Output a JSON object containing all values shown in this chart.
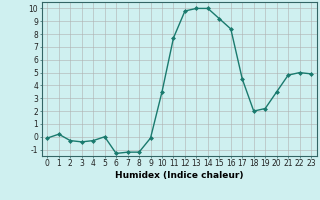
{
  "xlabel": "Humidex (Indice chaleur)",
  "x": [
    0,
    1,
    2,
    3,
    4,
    5,
    6,
    7,
    8,
    9,
    10,
    11,
    12,
    13,
    14,
    15,
    16,
    17,
    18,
    19,
    20,
    21,
    22,
    23
  ],
  "y": [
    -0.1,
    0.2,
    -0.3,
    -0.4,
    -0.3,
    0.0,
    -1.3,
    -1.2,
    -1.2,
    -0.1,
    3.5,
    7.7,
    9.8,
    10.0,
    10.0,
    9.2,
    8.4,
    4.5,
    2.0,
    2.2,
    3.5,
    4.8,
    5.0,
    4.9
  ],
  "line_color": "#1a7a6e",
  "marker": "D",
  "marker_size": 2.0,
  "bg_color": "#cff0f0",
  "grid_color_major": "#b0b0b0",
  "grid_color_minor": "#d8d8d8",
  "ylim": [
    -1.5,
    10.5
  ],
  "xlim": [
    -0.5,
    23.5
  ],
  "yticks": [
    -1,
    0,
    1,
    2,
    3,
    4,
    5,
    6,
    7,
    8,
    9,
    10
  ],
  "xticks": [
    0,
    1,
    2,
    3,
    4,
    5,
    6,
    7,
    8,
    9,
    10,
    11,
    12,
    13,
    14,
    15,
    16,
    17,
    18,
    19,
    20,
    21,
    22,
    23
  ],
  "xtick_labels": [
    "0",
    "1",
    "2",
    "3",
    "4",
    "5",
    "6",
    "7",
    "8",
    "9",
    "10",
    "11",
    "12",
    "13",
    "14",
    "15",
    "16",
    "17",
    "18",
    "19",
    "20",
    "21",
    "22",
    "23"
  ],
  "tick_fontsize": 5.5,
  "xlabel_fontsize": 6.5,
  "line_width": 1.0,
  "spine_color": "#336666"
}
